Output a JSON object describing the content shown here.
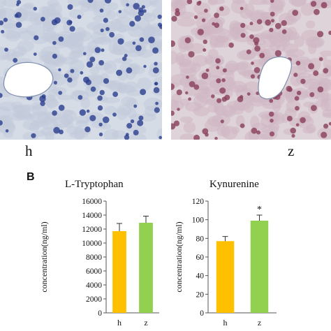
{
  "images": [
    {
      "label": "h",
      "tint": "#2a3f8f"
    },
    {
      "label": "z",
      "tint": "#8a3f5a"
    }
  ],
  "panel_letter": "B",
  "chart_data": [
    {
      "type": "bar",
      "title": "L-Tryptophan",
      "ylabel": "concentration(ng/ml)",
      "categories": [
        "h",
        "z"
      ],
      "values": [
        11700,
        12900
      ],
      "errors": [
        1100,
        950
      ],
      "colors": [
        "#ffc000",
        "#92d050"
      ],
      "ylim": [
        0,
        16000
      ],
      "yticks": [
        0,
        2000,
        4000,
        6000,
        8000,
        10000,
        12000,
        14000,
        16000
      ],
      "significance": [
        "",
        ""
      ]
    },
    {
      "type": "bar",
      "title": "Kynurenine",
      "ylabel": "concentration(ng/ml)",
      "categories": [
        "h",
        "z"
      ],
      "values": [
        77,
        99
      ],
      "errors": [
        5,
        6
      ],
      "colors": [
        "#ffc000",
        "#92d050"
      ],
      "ylim": [
        0,
        120
      ],
      "yticks": [
        0,
        20,
        40,
        60,
        80,
        100,
        120
      ],
      "significance": [
        "",
        "*"
      ]
    }
  ]
}
